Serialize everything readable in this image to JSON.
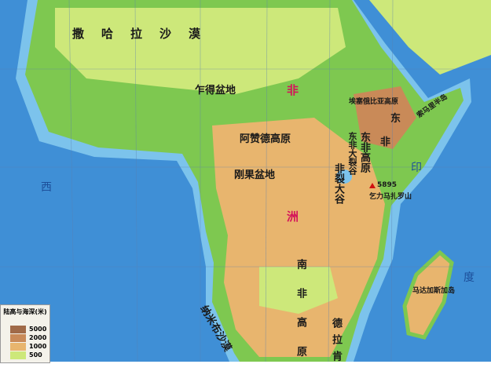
{
  "map": {
    "colors": {
      "ocean": "#3f8fd6",
      "shallow": "#7cc3ec",
      "lowland": "#7ec850",
      "plain": "#cde87a",
      "plateau": "#e8b56e",
      "highland": "#c98a58",
      "mountain": "#a06a48"
    },
    "continent_label": [
      "非",
      "洲"
    ],
    "labels": [
      {
        "id": "sahara",
        "text": "撒哈拉沙漠"
      },
      {
        "id": "chad",
        "text": "乍得盆地"
      },
      {
        "id": "ethiopia",
        "text": "埃塞俄比亚高原"
      },
      {
        "id": "somali",
        "text": "索马里半岛"
      },
      {
        "id": "azande",
        "text": "阿赞德高原"
      },
      {
        "id": "congo",
        "text": "刚果盆地"
      },
      {
        "id": "east-africa-1",
        "text": "东"
      },
      {
        "id": "east-africa-2",
        "text": "非"
      },
      {
        "id": "east-plateau",
        "text": "东非高原"
      },
      {
        "id": "rift",
        "text": "东非大裂谷"
      },
      {
        "id": "rift-west",
        "text": "非裂大谷"
      },
      {
        "id": "kili-height",
        "text": "5895"
      },
      {
        "id": "kili",
        "text": "乞力马扎罗山"
      },
      {
        "id": "south-plateau",
        "text": "南非高原"
      },
      {
        "id": "namib",
        "text": "纳米布沙漠"
      },
      {
        "id": "drakensberg",
        "text": "德拉肯"
      },
      {
        "id": "madagascar",
        "text": "马达加斯加岛"
      },
      {
        "id": "atlantic",
        "text": "西"
      },
      {
        "id": "indian-1",
        "text": "印"
      },
      {
        "id": "indian-2",
        "text": "度"
      }
    ],
    "legend": {
      "title": "陆高与海深(米)",
      "items": [
        {
          "value": "5000",
          "color": "#a06a48"
        },
        {
          "value": "2000",
          "color": "#c98a58"
        },
        {
          "value": "1000",
          "color": "#e8b56e"
        },
        {
          "value": "500",
          "color": "#cde87a"
        }
      ]
    }
  }
}
